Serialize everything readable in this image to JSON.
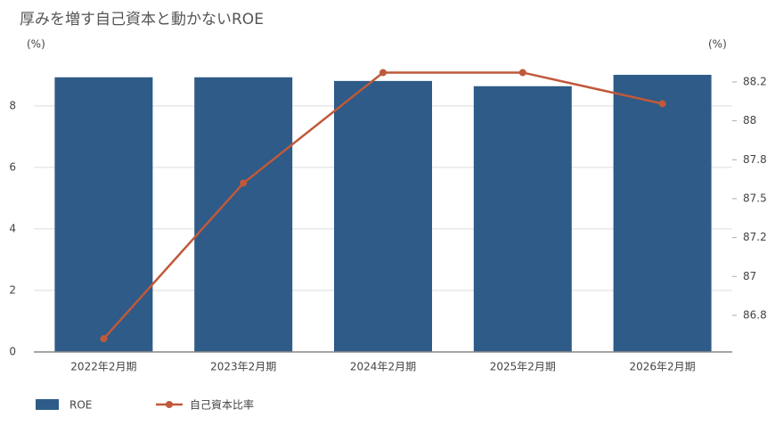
{
  "chart_data": {
    "type": "bar-line",
    "title": "厚みを増す自己資本と動かないROE",
    "y_unit": "(%)",
    "y2_unit": "(%)",
    "categories": [
      "2022年2月期",
      "2023年2月期",
      "2024年2月期",
      "2025年2月期",
      "2026年2月期"
    ],
    "series": [
      {
        "name": "ROE",
        "type": "bar",
        "color": "#2e5b88",
        "values": [
          8.93,
          8.93,
          8.81,
          8.64,
          9.01
        ]
      },
      {
        "name": "自己資本比率",
        "type": "line",
        "axis": "y2",
        "color": "#c0593a",
        "values": [
          86.6,
          87.6,
          88.31,
          88.31,
          88.11
        ]
      }
    ],
    "ylim": [
      0,
      9.27
    ],
    "yticks": [
      0,
      2,
      4,
      6,
      8
    ],
    "y2lim": [
      86.515,
      88.347
    ],
    "y2ticks": [
      {
        "value": 86.75,
        "label": "86.8"
      },
      {
        "value": 87,
        "label": "87"
      },
      {
        "value": 87.25,
        "label": "87.2"
      },
      {
        "value": 87.5,
        "label": "87.5"
      },
      {
        "value": 87.75,
        "label": "87.8"
      },
      {
        "value": 88,
        "label": "88"
      },
      {
        "value": 88.25,
        "label": "88.2"
      }
    ],
    "grid": true
  }
}
